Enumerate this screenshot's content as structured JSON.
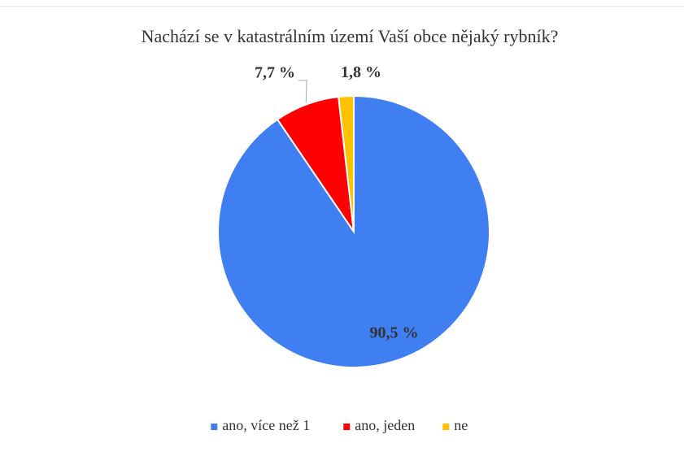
{
  "chart_data": {
    "type": "pie",
    "title": "Nachází se v katastrálním území Vaší obce nějaký rybník?",
    "categories": [
      "ano, více než 1",
      "ano, jeden",
      "ne"
    ],
    "values": [
      90.5,
      7.7,
      1.8
    ],
    "value_labels": [
      "90,5 %",
      "7,7 %",
      "1,8 %"
    ],
    "colors": [
      "#3f7ff2",
      "#ff0000",
      "#ffc000"
    ],
    "legend": "bottom"
  }
}
